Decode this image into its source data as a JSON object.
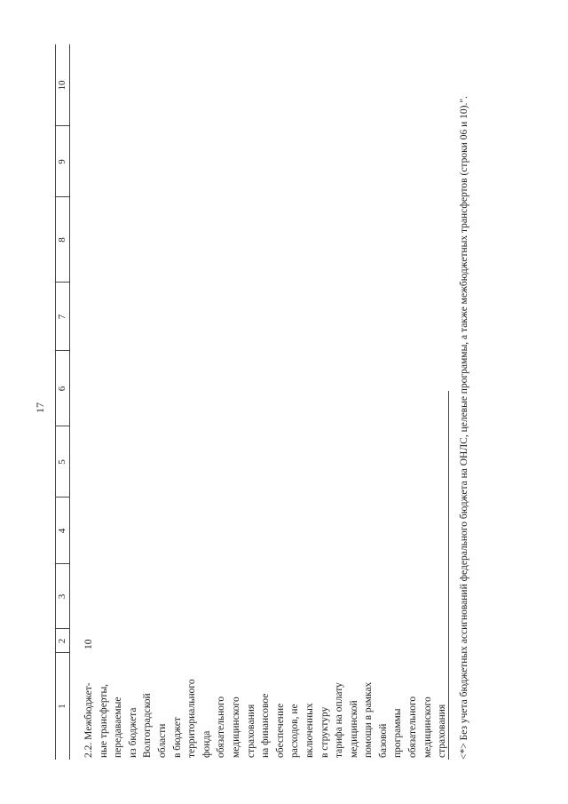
{
  "header": {
    "page_number": "17"
  },
  "table": {
    "headers": [
      "1",
      "2",
      "3",
      "4",
      "5",
      "6",
      "7",
      "8",
      "9",
      "10"
    ],
    "rows": [
      {
        "name_lines": [
          "2.2. Межбюджет-",
          "ные трансферты,",
          "передаваемые",
          "из бюджета",
          "Волгоградской",
          "области",
          "в бюджет",
          "территориального",
          "фонда",
          "обязательного",
          "медицинского",
          "страхования",
          "на финансовое",
          "обеспечение",
          "расходов, не",
          "включенных",
          "в структуру",
          "тарифа на оплату",
          "медицинской",
          "помощи в рамках",
          "базовой",
          "программы",
          "обязательного",
          "медицинского",
          "страхования"
        ],
        "code": "10"
      }
    ]
  },
  "footnote": "<*> Без учета бюджетных ассигнований федерального бюджета на ОНЛС, целевые программы, а также межбюджетных трансфертов (строки 06 и 10).\"."
}
